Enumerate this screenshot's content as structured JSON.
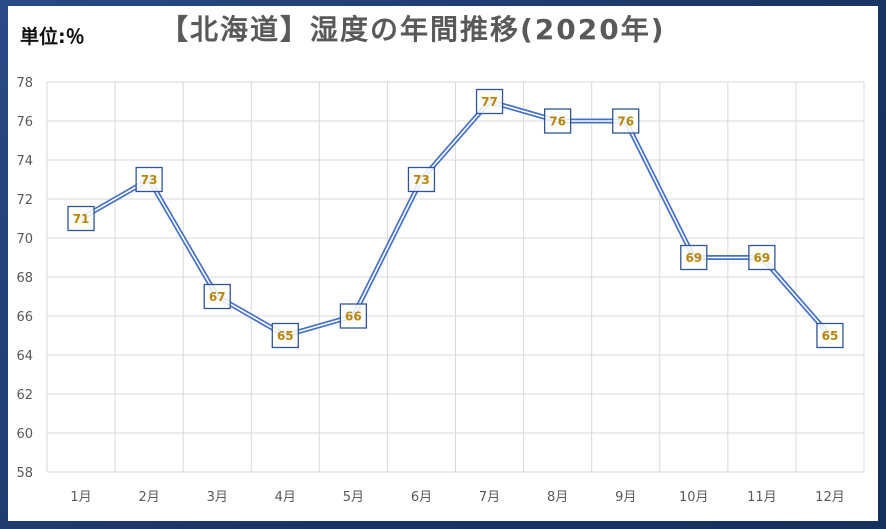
{
  "header": {
    "unit_label": "単位:％",
    "title": "【北海道】湿度の年間推移(2020年)"
  },
  "colors": {
    "line": "#4472c4",
    "marker": "#2f5597",
    "label": "#b8860b",
    "grid": "#d9d9d9"
  },
  "chart_data": {
    "type": "line",
    "title": "【北海道】湿度の年間推移(2020年)",
    "xlabel": "",
    "ylabel": "単位:％",
    "categories": [
      "1月",
      "2月",
      "3月",
      "4月",
      "5月",
      "6月",
      "7月",
      "8月",
      "9月",
      "10月",
      "11月",
      "12月"
    ],
    "series": [
      {
        "values": [
          71,
          73,
          67,
          65,
          66,
          73,
          77,
          76,
          76,
          69,
          69,
          65
        ]
      }
    ],
    "ylim": [
      58,
      78
    ],
    "yticks": [
      58,
      60,
      62,
      64,
      66,
      68,
      70,
      72,
      74,
      76,
      78
    ],
    "grid": true,
    "data_labels": true,
    "legend": "none"
  }
}
